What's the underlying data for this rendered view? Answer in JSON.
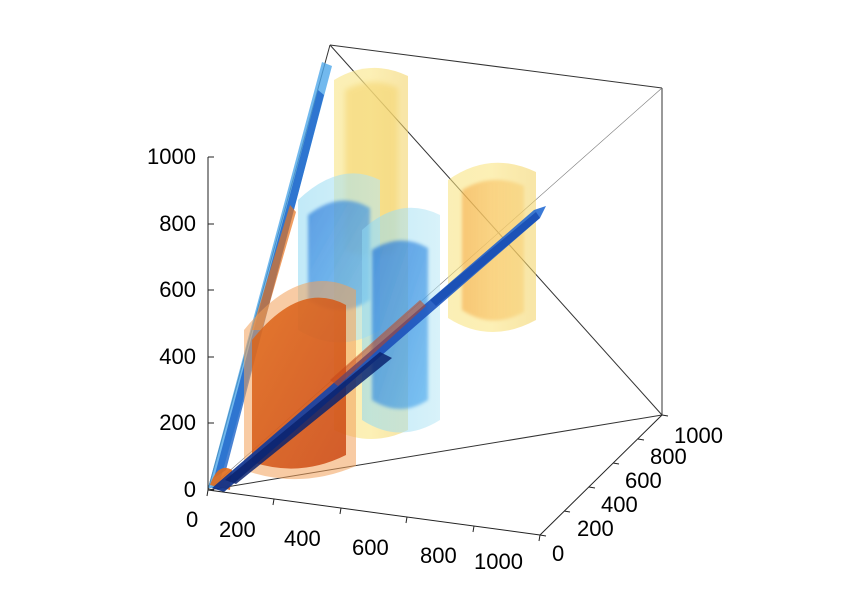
{
  "chart_data": {
    "type": "surface3d",
    "title": "",
    "xlabel": "",
    "ylabel": "",
    "zlabel": "",
    "xlim": [
      0,
      1000
    ],
    "ylim": [
      0,
      1000
    ],
    "zlim": [
      0,
      1000
    ],
    "x_ticks": [
      "0",
      "200",
      "400",
      "600",
      "800",
      "1000"
    ],
    "y_ticks": [
      "0",
      "200",
      "400",
      "600",
      "800",
      "1000"
    ],
    "z_ticks": [
      "0",
      "200",
      "400",
      "600",
      "800",
      "1000"
    ],
    "grid": false,
    "colormap": [
      "#08306b",
      "#2171d6",
      "#5bc0f5",
      "#fff27a",
      "#ff9a2e",
      "#d8430c"
    ],
    "description_of_content": "translucent isosurfaces of a field defined on the tetrahedral region y<=z<=x, warm (positive) and cool (negative) lobes along the diagonal"
  }
}
